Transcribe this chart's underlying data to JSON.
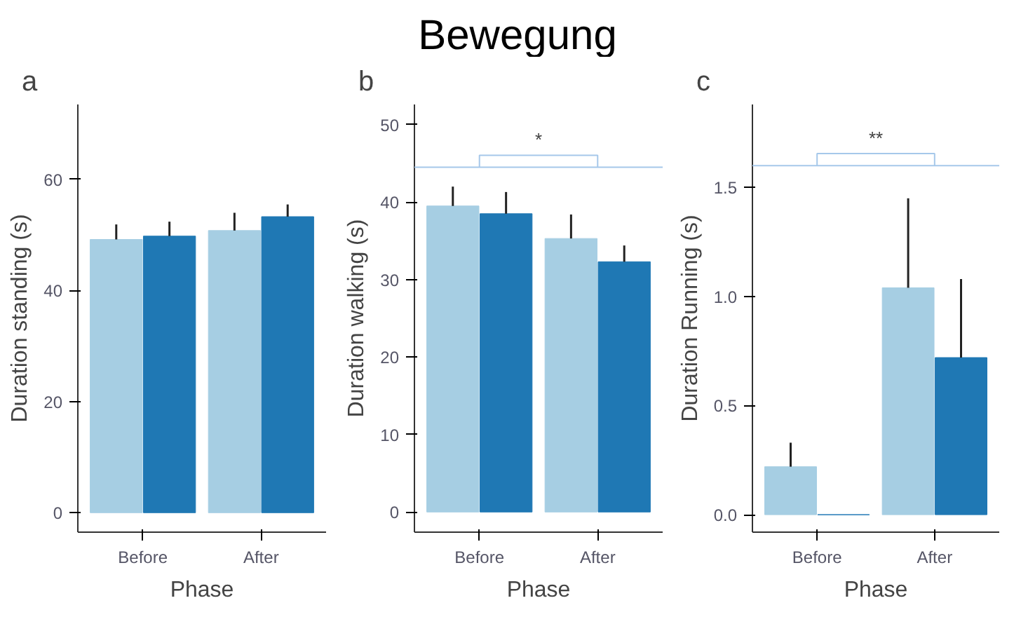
{
  "chart_data": [
    {
      "type": "bar",
      "title": "a",
      "xlabel": "Phase",
      "ylabel": "Duration standing (s)",
      "categories": [
        "Before",
        "After"
      ],
      "series": [
        {
          "color": "#a6cee3",
          "values": [
            49.2,
            50.8
          ],
          "errors": [
            [
              49.2,
              51.9
            ],
            [
              50.8,
              54.0
            ]
          ]
        },
        {
          "color": "#1f78b4",
          "values": [
            49.8,
            53.3
          ],
          "errors": [
            [
              49.8,
              52.4
            ],
            [
              53.3,
              55.5
            ]
          ]
        }
      ],
      "ylim": [
        -3.5,
        73.5
      ],
      "yticks": [
        0,
        20,
        40,
        60
      ],
      "grid": false
    },
    {
      "type": "bar",
      "title": "Bewegung",
      "subtitle": "b",
      "xlabel": "Phase",
      "ylabel": "Duration walking (s)",
      "categories": [
        "Before",
        "After"
      ],
      "series": [
        {
          "color": "#a6cee3",
          "values": [
            39.5,
            35.3
          ],
          "errors": [
            [
              39.5,
              42.0
            ],
            [
              35.3,
              38.4
            ]
          ]
        },
        {
          "color": "#1f78b4",
          "values": [
            38.5,
            32.3
          ],
          "errors": [
            [
              38.5,
              41.3
            ],
            [
              32.3,
              34.4
            ]
          ]
        }
      ],
      "ylim": [
        -2.6,
        52.6
      ],
      "yticks": [
        0,
        10,
        20,
        30,
        40,
        50
      ],
      "ref_lines": [
        {
          "axis": "y",
          "value": 44.5,
          "color": "#a6c8ea"
        }
      ],
      "annotations": [
        "*"
      ],
      "grid": false
    },
    {
      "type": "bar",
      "title": "c",
      "xlabel": "Phase",
      "ylabel": "Duration Running (s)",
      "categories": [
        "Before",
        "After"
      ],
      "series": [
        {
          "color": "#a6cee3",
          "values": [
            0.22,
            1.04
          ],
          "errors": [
            [
              0.22,
              0.33
            ],
            [
              1.04,
              1.45
            ]
          ]
        },
        {
          "color": "#1f78b4",
          "values": [
            0,
            0.72
          ],
          "errors": [
            null,
            [
              0.72,
              1.08
            ]
          ]
        }
      ],
      "ylim": [
        -0.08,
        1.88
      ],
      "yticks": [
        {
          "value": 0,
          "label": "0.0"
        },
        {
          "value": 0.5,
          "label": "0.5"
        },
        {
          "value": 1,
          "label": "1.0"
        },
        {
          "value": 1.5,
          "label": "1.5"
        }
      ],
      "ref_lines": [
        {
          "axis": "y",
          "value": 1.6,
          "color": "#a6c8ea"
        }
      ],
      "annotations": [
        "**"
      ],
      "grid": false
    }
  ]
}
